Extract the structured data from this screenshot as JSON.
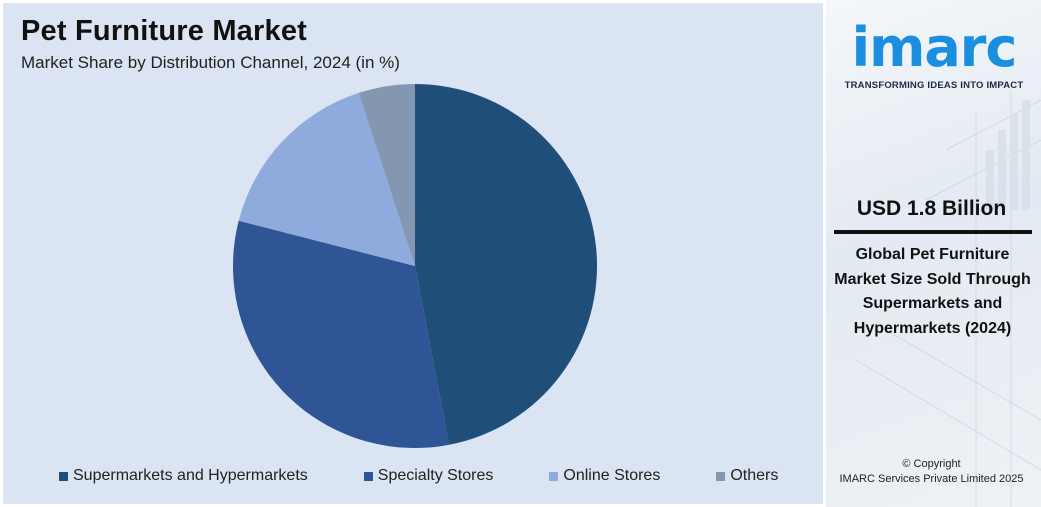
{
  "chart_data": {
    "type": "pie",
    "title": "Pet Furniture Market",
    "subtitle": "Market Share by Distribution Channel, 2024 (in %)",
    "categories": [
      "Supermarkets and Hypermarkets",
      "Specialty Stores",
      "Online Stores",
      "Others"
    ],
    "values": [
      47,
      32,
      16,
      5
    ],
    "colors": [
      "#1f4e79",
      "#2f5597",
      "#8faadc",
      "#8497b0"
    ],
    "legend_position": "bottom"
  },
  "side": {
    "logo_text": "imarc",
    "tagline": "TRANSFORMING IDEAS INTO IMPACT",
    "stat_value": "USD 1.8 Billion",
    "stat_description": "Global Pet Furniture Market Size Sold Through Supermarkets and Hypermarkets (2024)",
    "copyright_line1": "© Copyright",
    "copyright_line2": "IMARC Services Private Limited 2025"
  }
}
